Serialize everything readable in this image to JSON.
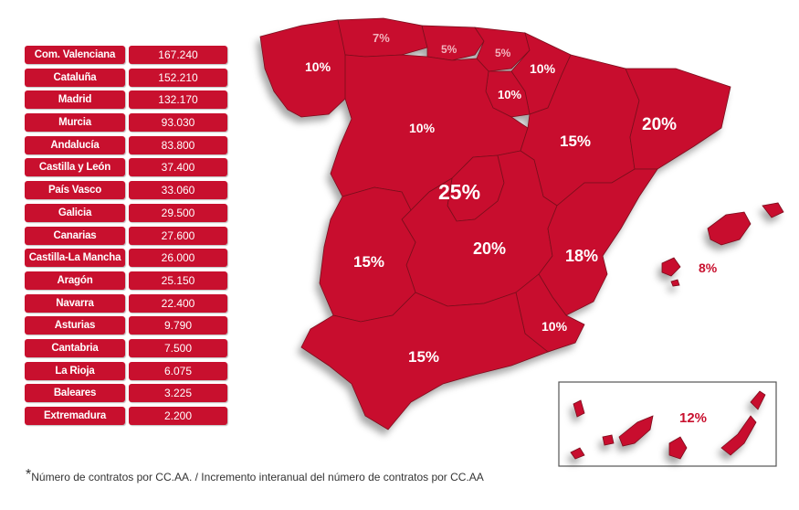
{
  "table": {
    "rows": [
      {
        "name": "Com. Valenciana",
        "value": "167.240"
      },
      {
        "name": "Cataluña",
        "value": "152.210"
      },
      {
        "name": "Madrid",
        "value": "132.170"
      },
      {
        "name": "Murcia",
        "value": "93.030"
      },
      {
        "name": "Andalucía",
        "value": "83.800"
      },
      {
        "name": "Castilla y León",
        "value": "37.400"
      },
      {
        "name": "País Vasco",
        "value": "33.060"
      },
      {
        "name": "Galicia",
        "value": "29.500"
      },
      {
        "name": "Canarias",
        "value": "27.600"
      },
      {
        "name": "Castilla-La Mancha",
        "value": "26.000"
      },
      {
        "name": "Aragón",
        "value": "25.150"
      },
      {
        "name": "Navarra",
        "value": "22.400"
      },
      {
        "name": "Asturias",
        "value": "9.790"
      },
      {
        "name": "Cantabria",
        "value": "7.500"
      },
      {
        "name": "La Rioja",
        "value": "6.075"
      },
      {
        "name": "Baleares",
        "value": "3.225"
      },
      {
        "name": "Extremadura",
        "value": "2.200"
      }
    ]
  },
  "map": {
    "labels": {
      "galicia": "10%",
      "asturias": "7%",
      "cantabria": "5%",
      "pais_vasco": "5%",
      "navarra": "10%",
      "la_rioja": "10%",
      "castilla_leon": "10%",
      "aragon": "15%",
      "cataluna": "20%",
      "madrid": "25%",
      "castilla_la_mancha": "20%",
      "extremadura": "15%",
      "valenciana": "18%",
      "murcia": "10%",
      "andalucia": "15%",
      "baleares": "8%",
      "canarias": "12%"
    },
    "colors": {
      "region_fill": "#c8102e",
      "region_border": "#7a0a1c"
    }
  },
  "footnote": {
    "star": "*",
    "text": "Número de contratos por CC.AA. / Incremento interanual del número de contratos por CC.AA"
  }
}
